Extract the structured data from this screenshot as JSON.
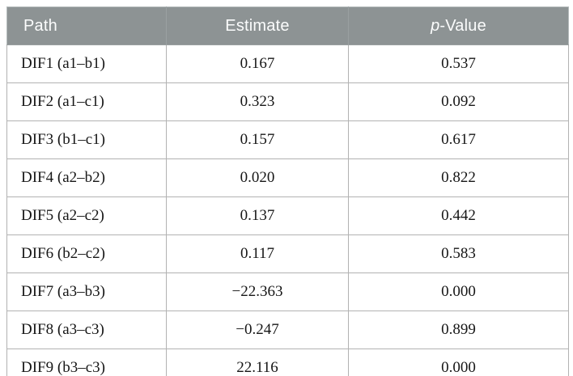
{
  "table": {
    "headers": {
      "path": "Path",
      "estimate": "Estimate",
      "p_italic": "p",
      "p_rest": "-Value"
    },
    "rows": [
      {
        "path": "DIF1 (a1–b1)",
        "estimate": "0.167",
        "p_value": "0.537"
      },
      {
        "path": "DIF2 (a1–c1)",
        "estimate": "0.323",
        "p_value": "0.092"
      },
      {
        "path": "DIF3 (b1–c1)",
        "estimate": "0.157",
        "p_value": "0.617"
      },
      {
        "path": "DIF4 (a2–b2)",
        "estimate": "0.020",
        "p_value": "0.822"
      },
      {
        "path": "DIF5 (a2–c2)",
        "estimate": "0.137",
        "p_value": "0.442"
      },
      {
        "path": "DIF6 (b2–c2)",
        "estimate": "0.117",
        "p_value": "0.583"
      },
      {
        "path": "DIF7 (a3–b3)",
        "estimate": "−22.363",
        "p_value": "0.000"
      },
      {
        "path": "DIF8 (a3–c3)",
        "estimate": "−0.247",
        "p_value": "0.899"
      },
      {
        "path": "DIF9 (b3–c3)",
        "estimate": "22.116",
        "p_value": "0.000"
      }
    ]
  },
  "colors": {
    "header_bg": "#8d9394",
    "header_text": "#fbfcfc",
    "body_text": "#161616",
    "grid_border": "#b2b2b2",
    "page_bg": "#ffffff"
  }
}
